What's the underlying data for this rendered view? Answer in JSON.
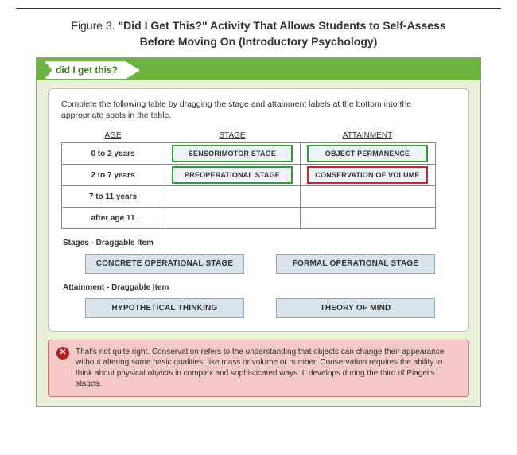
{
  "caption": {
    "lead": "Figure 3. ",
    "line1_bold": "\"Did I Get This?\" Activity That Allows Students to Self-Assess",
    "line2_bold": "Before Moving On (Introductory Psychology)"
  },
  "tab_label": "did I get this?",
  "instructions": "Complete the following table by dragging the stage and attainment labels at the bottom into the appropriate spots in the table.",
  "headers": {
    "age": "AGE",
    "stage": "STAGE",
    "attainment": "ATTAINMENT"
  },
  "rows": [
    {
      "age": "0 to 2 years",
      "stage": {
        "label": "SENSORIMOTOR STAGE",
        "state": "correct"
      },
      "attainment": {
        "label": "OBJECT PERMANENCE",
        "state": "correct"
      }
    },
    {
      "age": "2 to 7 years",
      "stage": {
        "label": "PREOPERATIONAL STAGE",
        "state": "correct"
      },
      "attainment": {
        "label": "CONSERVATION OF VOLUME",
        "state": "wrong"
      }
    },
    {
      "age": "7 to 11 years",
      "stage": null,
      "attainment": null
    },
    {
      "age": "after age 11",
      "stage": null,
      "attainment": null
    }
  ],
  "stages_pool_label": "Stages - Draggable Item",
  "stages_pool": [
    "CONCRETE OPERATIONAL STAGE",
    "FORMAL OPERATIONAL STAGE"
  ],
  "attainment_pool_label": "Attainment - Draggable Item",
  "attainment_pool": [
    "HYPOTHETICAL THINKING",
    "THEORY OF MIND"
  ],
  "feedback": "That's not quite right. Conservation refers to the understanding that objects can change their appearance without altering some basic qualities, like mass or volume or number. Conservation requires the ability to think about physical objects in complex and sophisticated ways. It develops during the third of Piaget's stages.",
  "colors": {
    "header_bar": "#6cb33f",
    "panel_bg": "#e8f0d8",
    "correct": "#2e9e2e",
    "wrong": "#c62828",
    "feedback_bg": "#f6c9c9",
    "chip_bg": "#d9e3ec"
  }
}
